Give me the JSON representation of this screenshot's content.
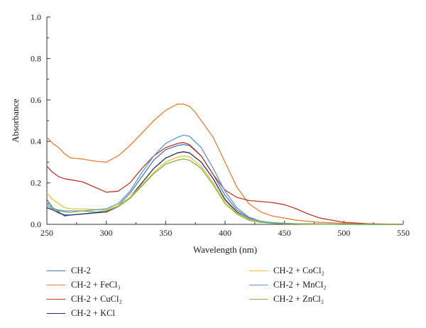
{
  "chart_data": {
    "type": "line",
    "title": "",
    "xlabel": "Wavelength (nm)",
    "ylabel": "Absorbance",
    "xlim": [
      250,
      550
    ],
    "ylim": [
      0,
      1.0
    ],
    "xticks": [
      250,
      300,
      350,
      400,
      450,
      500,
      550
    ],
    "yticks": [
      "0.0",
      "0.2",
      "0.4",
      "0.6",
      "0.8",
      "1.0"
    ],
    "grid": false,
    "legend_position": "bottom",
    "series": [
      {
        "name": "CH-2",
        "color": "#4f78b9",
        "x": [
          250,
          255,
          260,
          265,
          270,
          280,
          290,
          300,
          310,
          320,
          330,
          340,
          350,
          360,
          365,
          370,
          380,
          390,
          400,
          410,
          420,
          430,
          440,
          450,
          460,
          480,
          500,
          520,
          550
        ],
        "y": [
          0.12,
          0.08,
          0.06,
          0.04,
          0.045,
          0.05,
          0.055,
          0.06,
          0.09,
          0.15,
          0.23,
          0.31,
          0.36,
          0.38,
          0.385,
          0.38,
          0.33,
          0.24,
          0.14,
          0.07,
          0.03,
          0.015,
          0.008,
          0.005,
          0.003,
          0.002,
          0.001,
          0.0,
          0.0
        ]
      },
      {
        "name": "CH-2 + FeCl₃",
        "color": "#ed7d31",
        "x": [
          250,
          255,
          260,
          265,
          270,
          280,
          290,
          300,
          310,
          320,
          330,
          340,
          350,
          360,
          365,
          370,
          375,
          380,
          390,
          400,
          410,
          420,
          430,
          440,
          450,
          460,
          480,
          500,
          520,
          550
        ],
        "y": [
          0.42,
          0.39,
          0.37,
          0.34,
          0.32,
          0.315,
          0.305,
          0.3,
          0.33,
          0.38,
          0.44,
          0.5,
          0.55,
          0.58,
          0.58,
          0.57,
          0.54,
          0.5,
          0.42,
          0.3,
          0.18,
          0.1,
          0.06,
          0.04,
          0.03,
          0.02,
          0.01,
          0.005,
          0.001,
          0.0
        ]
      },
      {
        "name": "CH-2 + CuCl₂",
        "color": "#c0392b",
        "x": [
          250,
          255,
          260,
          265,
          270,
          280,
          290,
          300,
          310,
          320,
          330,
          340,
          350,
          360,
          365,
          370,
          380,
          390,
          400,
          410,
          420,
          430,
          440,
          450,
          460,
          470,
          480,
          500,
          520,
          550
        ],
        "y": [
          0.28,
          0.25,
          0.23,
          0.22,
          0.215,
          0.205,
          0.18,
          0.155,
          0.16,
          0.2,
          0.27,
          0.33,
          0.37,
          0.39,
          0.395,
          0.385,
          0.33,
          0.24,
          0.165,
          0.13,
          0.115,
          0.11,
          0.105,
          0.095,
          0.075,
          0.05,
          0.03,
          0.01,
          0.003,
          0.0
        ]
      },
      {
        "name": "CH-2 + KCl",
        "color": "#2a2a6e",
        "x": [
          250,
          255,
          260,
          265,
          270,
          280,
          290,
          300,
          310,
          320,
          330,
          340,
          350,
          360,
          365,
          370,
          380,
          390,
          400,
          410,
          420,
          430,
          440,
          450,
          460,
          480,
          500,
          520,
          550
        ],
        "y": [
          0.08,
          0.07,
          0.055,
          0.045,
          0.045,
          0.05,
          0.055,
          0.06,
          0.085,
          0.13,
          0.2,
          0.27,
          0.32,
          0.345,
          0.35,
          0.345,
          0.3,
          0.22,
          0.12,
          0.06,
          0.025,
          0.012,
          0.006,
          0.004,
          0.002,
          0.001,
          0.0,
          0.0,
          0.0
        ]
      },
      {
        "name": "CH-2 + CoCl₂",
        "color": "#f2c12e",
        "x": [
          250,
          255,
          260,
          265,
          270,
          280,
          290,
          300,
          310,
          320,
          330,
          340,
          350,
          360,
          365,
          370,
          380,
          390,
          400,
          410,
          420,
          430,
          440,
          450,
          460,
          480,
          500,
          520,
          550
        ],
        "y": [
          0.15,
          0.12,
          0.1,
          0.08,
          0.075,
          0.075,
          0.072,
          0.07,
          0.09,
          0.13,
          0.19,
          0.25,
          0.3,
          0.325,
          0.33,
          0.325,
          0.28,
          0.2,
          0.11,
          0.055,
          0.025,
          0.012,
          0.006,
          0.004,
          0.002,
          0.001,
          0.0,
          0.0,
          0.0
        ]
      },
      {
        "name": "CH-2 + MnCl₂",
        "color": "#5b9bd5",
        "x": [
          250,
          255,
          260,
          265,
          270,
          280,
          290,
          300,
          310,
          320,
          330,
          340,
          350,
          360,
          365,
          370,
          380,
          390,
          400,
          410,
          420,
          430,
          440,
          450,
          460,
          480,
          500,
          520,
          550
        ],
        "y": [
          0.09,
          0.075,
          0.07,
          0.065,
          0.065,
          0.065,
          0.07,
          0.075,
          0.1,
          0.16,
          0.25,
          0.33,
          0.39,
          0.42,
          0.43,
          0.425,
          0.37,
          0.27,
          0.16,
          0.08,
          0.035,
          0.015,
          0.008,
          0.005,
          0.003,
          0.002,
          0.001,
          0.0,
          0.0
        ]
      },
      {
        "name": "CH-2 + ZnCl₂",
        "color": "#7ab648",
        "x": [
          250,
          255,
          260,
          265,
          270,
          280,
          290,
          300,
          310,
          320,
          330,
          340,
          350,
          360,
          365,
          370,
          380,
          390,
          400,
          410,
          420,
          430,
          440,
          450,
          460,
          480,
          500,
          520,
          550
        ],
        "y": [
          0.1,
          0.08,
          0.065,
          0.06,
          0.058,
          0.065,
          0.06,
          0.065,
          0.085,
          0.125,
          0.185,
          0.245,
          0.29,
          0.31,
          0.315,
          0.31,
          0.27,
          0.19,
          0.1,
          0.05,
          0.02,
          0.01,
          0.005,
          0.003,
          0.002,
          0.001,
          0.0,
          0.0,
          0.0
        ]
      }
    ]
  }
}
